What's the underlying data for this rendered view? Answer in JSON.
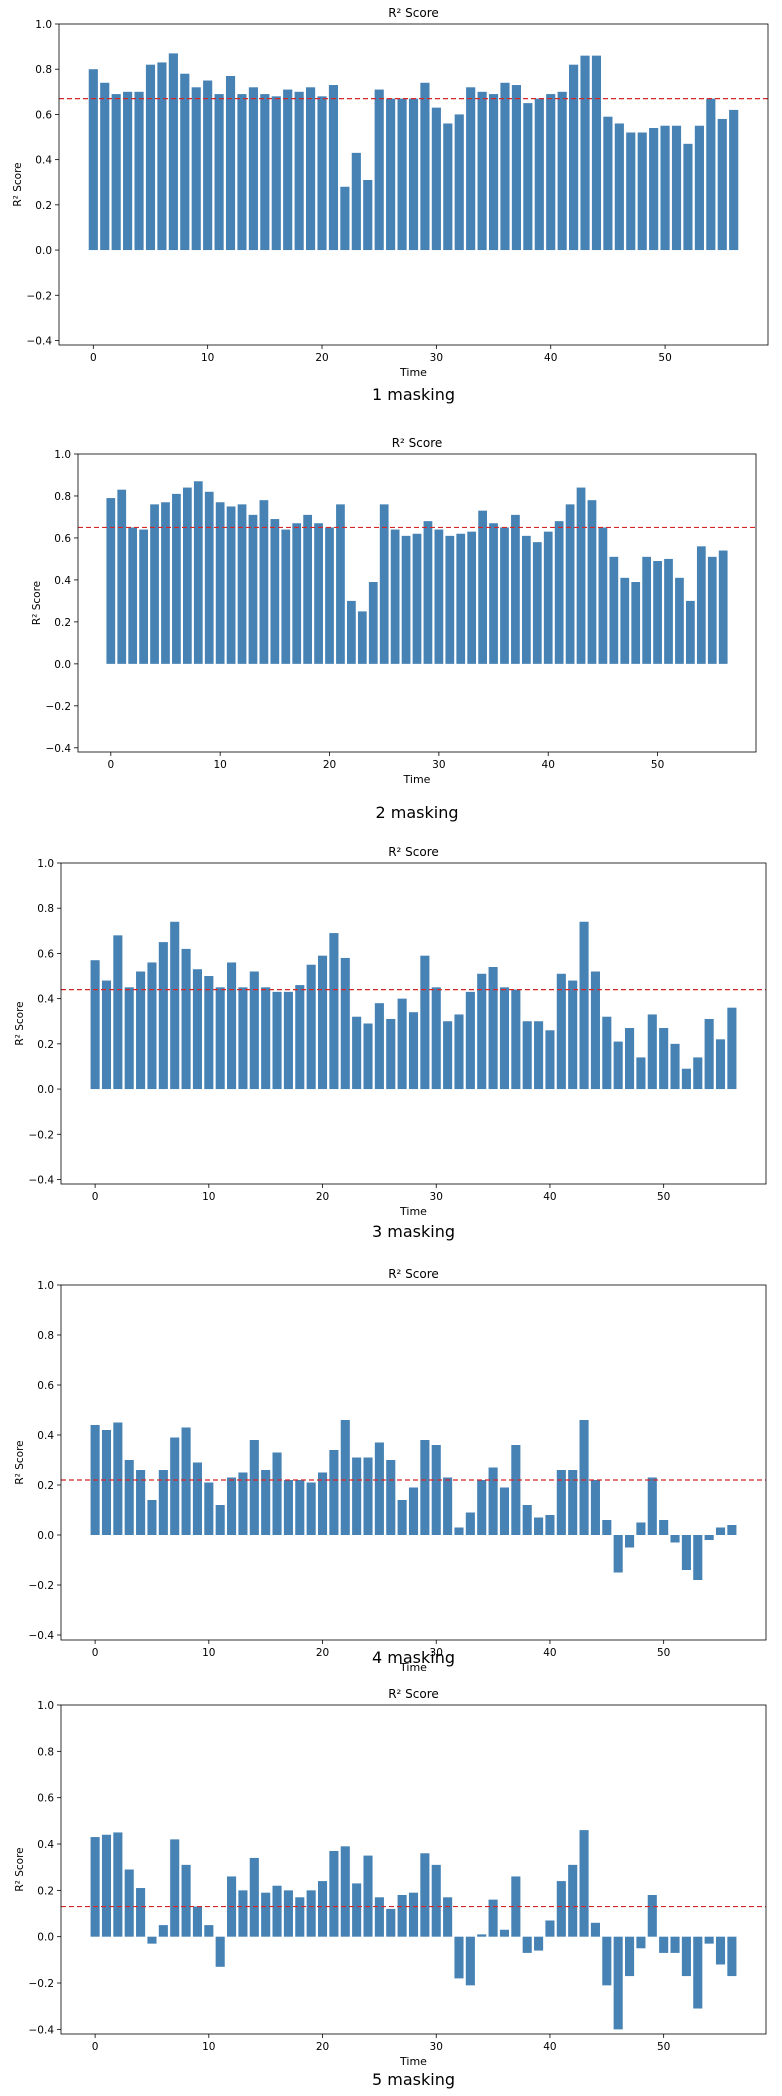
{
  "chart_data": [
    {
      "type": "bar",
      "title": "R² Score",
      "xlabel": "Time",
      "ylabel": "R² Score",
      "caption": "1 masking",
      "xticks": [
        "0",
        "10",
        "20",
        "30",
        "40",
        "50"
      ],
      "yticks": [
        "−0.4",
        "−0.2",
        "0.0",
        "0.2",
        "0.4",
        "0.6",
        "0.8",
        "1.0"
      ],
      "xlim": [
        -3,
        59
      ],
      "ylim": [
        -0.42,
        1.0
      ],
      "mean_line": 0.67,
      "values": [
        0.8,
        0.74,
        0.69,
        0.7,
        0.7,
        0.82,
        0.83,
        0.87,
        0.78,
        0.72,
        0.75,
        0.69,
        0.77,
        0.69,
        0.72,
        0.69,
        0.68,
        0.71,
        0.7,
        0.72,
        0.68,
        0.73,
        0.28,
        0.43,
        0.31,
        0.71,
        0.67,
        0.67,
        0.67,
        0.74,
        0.63,
        0.56,
        0.6,
        0.72,
        0.7,
        0.69,
        0.74,
        0.73,
        0.65,
        0.67,
        0.69,
        0.7,
        0.82,
        0.86,
        0.86,
        0.59,
        0.56,
        0.52,
        0.52,
        0.54,
        0.55,
        0.55,
        0.47,
        0.55,
        0.67,
        0.58,
        0.62
      ],
      "color": "#4682b4"
    },
    {
      "type": "bar",
      "title": "R² Score",
      "xlabel": "Time",
      "ylabel": "R² Score",
      "caption": "2 masking",
      "xticks": [
        "0",
        "10",
        "20",
        "30",
        "40",
        "50"
      ],
      "yticks": [
        "−0.4",
        "−0.2",
        "0.0",
        "0.2",
        "0.4",
        "0.6",
        "0.8",
        "1.0"
      ],
      "xlim": [
        -3,
        59
      ],
      "ylim": [
        -0.42,
        1.0
      ],
      "mean_line": 0.65,
      "values": [
        0.79,
        0.83,
        0.65,
        0.64,
        0.76,
        0.77,
        0.81,
        0.84,
        0.87,
        0.82,
        0.77,
        0.75,
        0.76,
        0.71,
        0.78,
        0.69,
        0.64,
        0.67,
        0.71,
        0.67,
        0.65,
        0.76,
        0.3,
        0.25,
        0.39,
        0.76,
        0.64,
        0.61,
        0.62,
        0.68,
        0.64,
        0.61,
        0.62,
        0.63,
        0.73,
        0.67,
        0.65,
        0.71,
        0.61,
        0.58,
        0.63,
        0.68,
        0.76,
        0.84,
        0.78,
        0.65,
        0.51,
        0.41,
        0.39,
        0.51,
        0.49,
        0.5,
        0.41,
        0.3,
        0.56,
        0.51,
        0.54
      ],
      "color": "#4682b4"
    },
    {
      "type": "bar",
      "title": "R² Score",
      "xlabel": "Time",
      "ylabel": "R² Score",
      "caption": "3 masking",
      "xticks": [
        "0",
        "10",
        "20",
        "30",
        "40",
        "50"
      ],
      "yticks": [
        "−0.4",
        "−0.2",
        "0.0",
        "0.2",
        "0.4",
        "0.6",
        "0.8",
        "1.0"
      ],
      "xlim": [
        -3,
        59
      ],
      "ylim": [
        -0.42,
        1.0
      ],
      "mean_line": 0.44,
      "values": [
        0.57,
        0.48,
        0.68,
        0.45,
        0.52,
        0.56,
        0.65,
        0.74,
        0.62,
        0.53,
        0.5,
        0.45,
        0.56,
        0.45,
        0.52,
        0.45,
        0.43,
        0.43,
        0.46,
        0.55,
        0.59,
        0.69,
        0.58,
        0.32,
        0.29,
        0.38,
        0.31,
        0.4,
        0.34,
        0.59,
        0.45,
        0.3,
        0.33,
        0.43,
        0.51,
        0.54,
        0.45,
        0.44,
        0.3,
        0.3,
        0.26,
        0.51,
        0.48,
        0.74,
        0.52,
        0.32,
        0.21,
        0.27,
        0.14,
        0.33,
        0.27,
        0.2,
        0.09,
        0.14,
        0.31,
        0.22,
        0.36
      ],
      "color": "#4682b4"
    },
    {
      "type": "bar",
      "title": "R² Score",
      "xlabel": "Time",
      "ylabel": "R² Score",
      "caption": "4 masking",
      "xticks": [
        "0",
        "10",
        "20",
        "30",
        "40",
        "50"
      ],
      "yticks": [
        "−0.4",
        "−0.2",
        "0.0",
        "0.2",
        "0.4",
        "0.6",
        "0.8",
        "1.0"
      ],
      "xlim": [
        -3,
        59
      ],
      "ylim": [
        -0.42,
        1.0
      ],
      "mean_line": 0.22,
      "values": [
        0.44,
        0.42,
        0.45,
        0.3,
        0.26,
        0.14,
        0.26,
        0.39,
        0.43,
        0.29,
        0.21,
        0.12,
        0.23,
        0.25,
        0.38,
        0.26,
        0.33,
        0.22,
        0.22,
        0.21,
        0.25,
        0.34,
        0.46,
        0.31,
        0.31,
        0.37,
        0.3,
        0.14,
        0.19,
        0.38,
        0.36,
        0.23,
        0.03,
        0.09,
        0.22,
        0.27,
        0.19,
        0.36,
        0.12,
        0.07,
        0.08,
        0.26,
        0.26,
        0.46,
        0.22,
        0.06,
        -0.15,
        -0.05,
        0.05,
        0.23,
        0.06,
        -0.03,
        -0.14,
        -0.18,
        -0.02,
        0.03,
        0.04
      ],
      "color": "#4682b4"
    },
    {
      "type": "bar",
      "title": "R² Score",
      "xlabel": "Time",
      "ylabel": "R² Score",
      "caption": "5 masking",
      "xticks": [
        "0",
        "10",
        "20",
        "30",
        "40",
        "50"
      ],
      "yticks": [
        "−0.4",
        "−0.2",
        "0.0",
        "0.2",
        "0.4",
        "0.6",
        "0.8",
        "1.0"
      ],
      "xlim": [
        -3,
        59
      ],
      "ylim": [
        -0.42,
        1.0
      ],
      "mean_line": 0.13,
      "values": [
        0.43,
        0.44,
        0.45,
        0.29,
        0.21,
        -0.03,
        0.05,
        0.42,
        0.31,
        0.13,
        0.05,
        -0.13,
        0.26,
        0.2,
        0.34,
        0.19,
        0.22,
        0.2,
        0.17,
        0.2,
        0.24,
        0.37,
        0.39,
        0.23,
        0.35,
        0.17,
        0.12,
        0.18,
        0.19,
        0.36,
        0.31,
        0.17,
        -0.18,
        -0.21,
        0.01,
        0.16,
        0.03,
        0.26,
        -0.07,
        -0.06,
        0.07,
        0.24,
        0.31,
        0.46,
        0.06,
        -0.21,
        -0.4,
        -0.17,
        -0.05,
        0.18,
        -0.07,
        -0.07,
        -0.17,
        -0.31,
        -0.03,
        -0.12,
        -0.17
      ],
      "color": "#4682b4"
    }
  ],
  "style": {
    "bar_color": "#4682b4",
    "mean_line_color": "#d62728",
    "axis_color": "#000000"
  }
}
